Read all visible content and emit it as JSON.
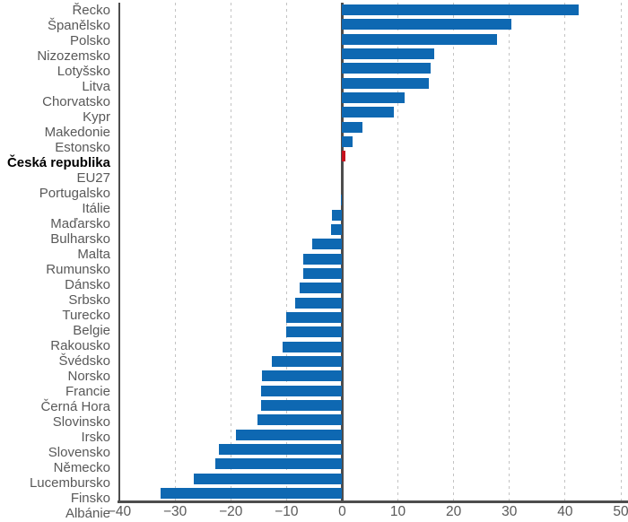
{
  "chart_data": {
    "type": "bar",
    "orientation": "horizontal",
    "title": "",
    "xlabel": "",
    "ylabel": "",
    "xlim": [
      -40,
      50
    ],
    "x_ticks": [
      -40,
      -30,
      -20,
      -10,
      0,
      10,
      20,
      30,
      40,
      50
    ],
    "x_tick_labels": [
      "−40",
      "−30",
      "−20",
      "−10",
      "0",
      "10",
      "20",
      "30",
      "40",
      "50"
    ],
    "grid": "vertical dashed gridlines every 10 units, solid vertical zero axis, no top/right border",
    "legend": "none",
    "highlight_category": "Česká republika",
    "categories": [
      "Řecko",
      "Španělsko",
      "Polsko",
      "Nizozemsko",
      "Lotyšsko",
      "Litva",
      "Chorvatsko",
      "Kypr",
      "Makedonie",
      "Estonsko",
      "Česká republika",
      "EU27",
      "Portugalsko",
      "Itálie",
      "Maďarsko",
      "Bulharsko",
      "Malta",
      "Rumunsko",
      "Dánsko",
      "Srbsko",
      "Turecko",
      "Belgie",
      "Rakousko",
      "Švédsko",
      "Norsko",
      "Francie",
      "Černá Hora",
      "Slovinsko",
      "Irsko",
      "Slovensko",
      "Německo",
      "Lucembursko",
      "Finsko",
      "Albánie"
    ],
    "values": [
      42.5,
      30.3,
      27.8,
      16.5,
      15.8,
      15.6,
      11.2,
      9.2,
      3.6,
      1.9,
      0.6,
      0,
      0,
      -0.3,
      -1.9,
      -2.0,
      -5.4,
      -7.0,
      -7.0,
      -7.7,
      -8.5,
      -10.1,
      -10.1,
      -10.7,
      -12.6,
      -14.4,
      -14.6,
      -14.6,
      -15.2,
      -19.1,
      -22.2,
      -22.7,
      -26.7,
      -32.6
    ],
    "colors": {
      "bar": "#0e68b2",
      "highlight_bar": "#c5111e",
      "axis_line": "#4d4d4d",
      "gridline": "#c3c3c3",
      "tick_label": "#595959",
      "category_label": "#595959",
      "highlight_label": "#000000",
      "background": "#ffffff"
    }
  }
}
